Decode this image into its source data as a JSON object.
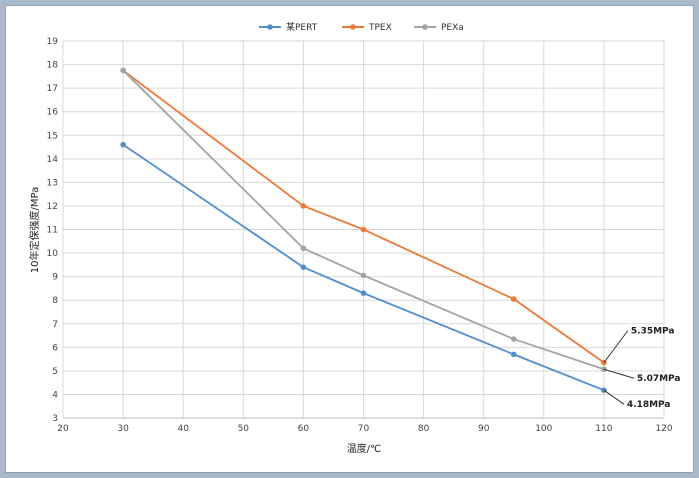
{
  "chart_data": {
    "type": "line",
    "title": "",
    "xlabel": "温度/℃",
    "ylabel": "10年定保强度/MPa",
    "xlim": [
      20,
      120
    ],
    "ylim": [
      3,
      19
    ],
    "xticks": [
      20,
      30,
      40,
      50,
      60,
      70,
      80,
      90,
      100,
      110,
      120
    ],
    "yticks": [
      3,
      4,
      5,
      6,
      7,
      8,
      9,
      10,
      11,
      12,
      13,
      14,
      15,
      16,
      17,
      18,
      19
    ],
    "grid": true,
    "legend_position": "top-center",
    "series": [
      {
        "name": "某PERT",
        "color": "#4f8fd0",
        "x": [
          30,
          60,
          70,
          95,
          110
        ],
        "y": [
          14.6,
          9.4,
          8.3,
          5.7,
          4.18
        ]
      },
      {
        "name": "TPEX",
        "color": "#ec7935",
        "x": [
          30,
          60,
          70,
          95,
          110
        ],
        "y": [
          17.75,
          12.0,
          11.0,
          8.05,
          5.35
        ]
      },
      {
        "name": "PEXa",
        "color": "#a3a3a3",
        "x": [
          30,
          60,
          70,
          95,
          110
        ],
        "y": [
          17.75,
          10.2,
          9.05,
          6.35,
          5.07
        ]
      }
    ],
    "annotations": [
      {
        "text": "5.35MPa",
        "x": 110,
        "y": 5.35,
        "series": "TPEX"
      },
      {
        "text": "5.07MPa",
        "x": 110,
        "y": 5.07,
        "series": "PEXa"
      },
      {
        "text": "4.18MPa",
        "x": 110,
        "y": 4.18,
        "series": "某PERT"
      }
    ]
  }
}
